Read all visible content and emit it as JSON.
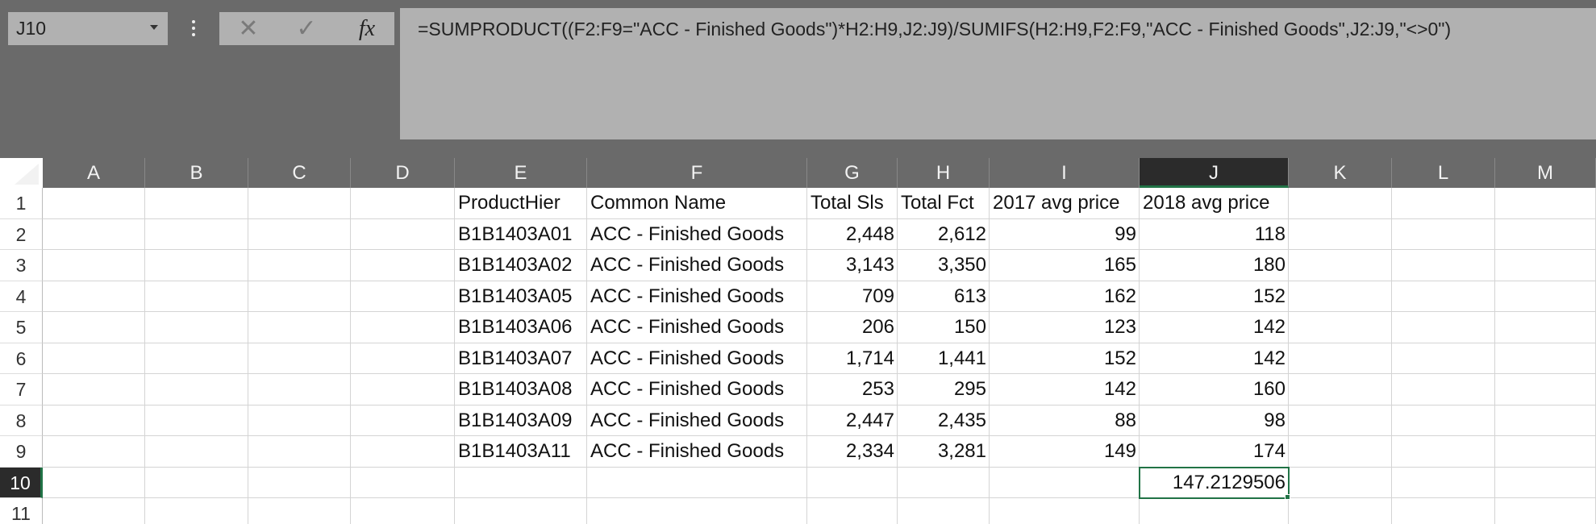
{
  "name_box": "J10",
  "function_label": "fx",
  "formula": "=SUMPRODUCT((F2:F9=\"ACC - Finished Goods\")*H2:H9,J2:J9)/SUMIFS(H2:H9,F2:F9,\"ACC - Finished Goods\",J2:J9,\"<>0\")",
  "columns": [
    "A",
    "B",
    "C",
    "D",
    "E",
    "F",
    "G",
    "H",
    "I",
    "J",
    "K",
    "L",
    "M"
  ],
  "row_numbers": [
    1,
    2,
    3,
    4,
    5,
    6,
    7,
    8,
    9,
    10,
    11
  ],
  "table": {
    "header": [
      "ProductHier",
      "Common Name",
      "Total Sls",
      "Total Fct",
      "2017 avg price",
      "2018 avg price"
    ],
    "rows": [
      [
        "B1B1403A01",
        "ACC - Finished Goods",
        "2,448",
        "2,612",
        99,
        118
      ],
      [
        "B1B1403A02",
        "ACC - Finished Goods",
        "3,143",
        "3,350",
        165,
        180
      ],
      [
        "B1B1403A05",
        "ACC - Finished Goods",
        709,
        613,
        162,
        152
      ],
      [
        "B1B1403A06",
        "ACC - Finished Goods",
        206,
        150,
        123,
        142
      ],
      [
        "B1B1403A07",
        "ACC - Finished Goods",
        "1,714",
        "1,441",
        152,
        142
      ],
      [
        "B1B1403A08",
        "ACC - Finished Goods",
        253,
        295,
        142,
        160
      ],
      [
        "B1B1403A09",
        "ACC - Finished Goods",
        "2,447",
        "2,435",
        88,
        98
      ],
      [
        "B1B1403A11",
        "ACC - Finished Goods",
        "2,334",
        "3,281",
        149,
        174
      ]
    ],
    "result": 147.2129506
  }
}
